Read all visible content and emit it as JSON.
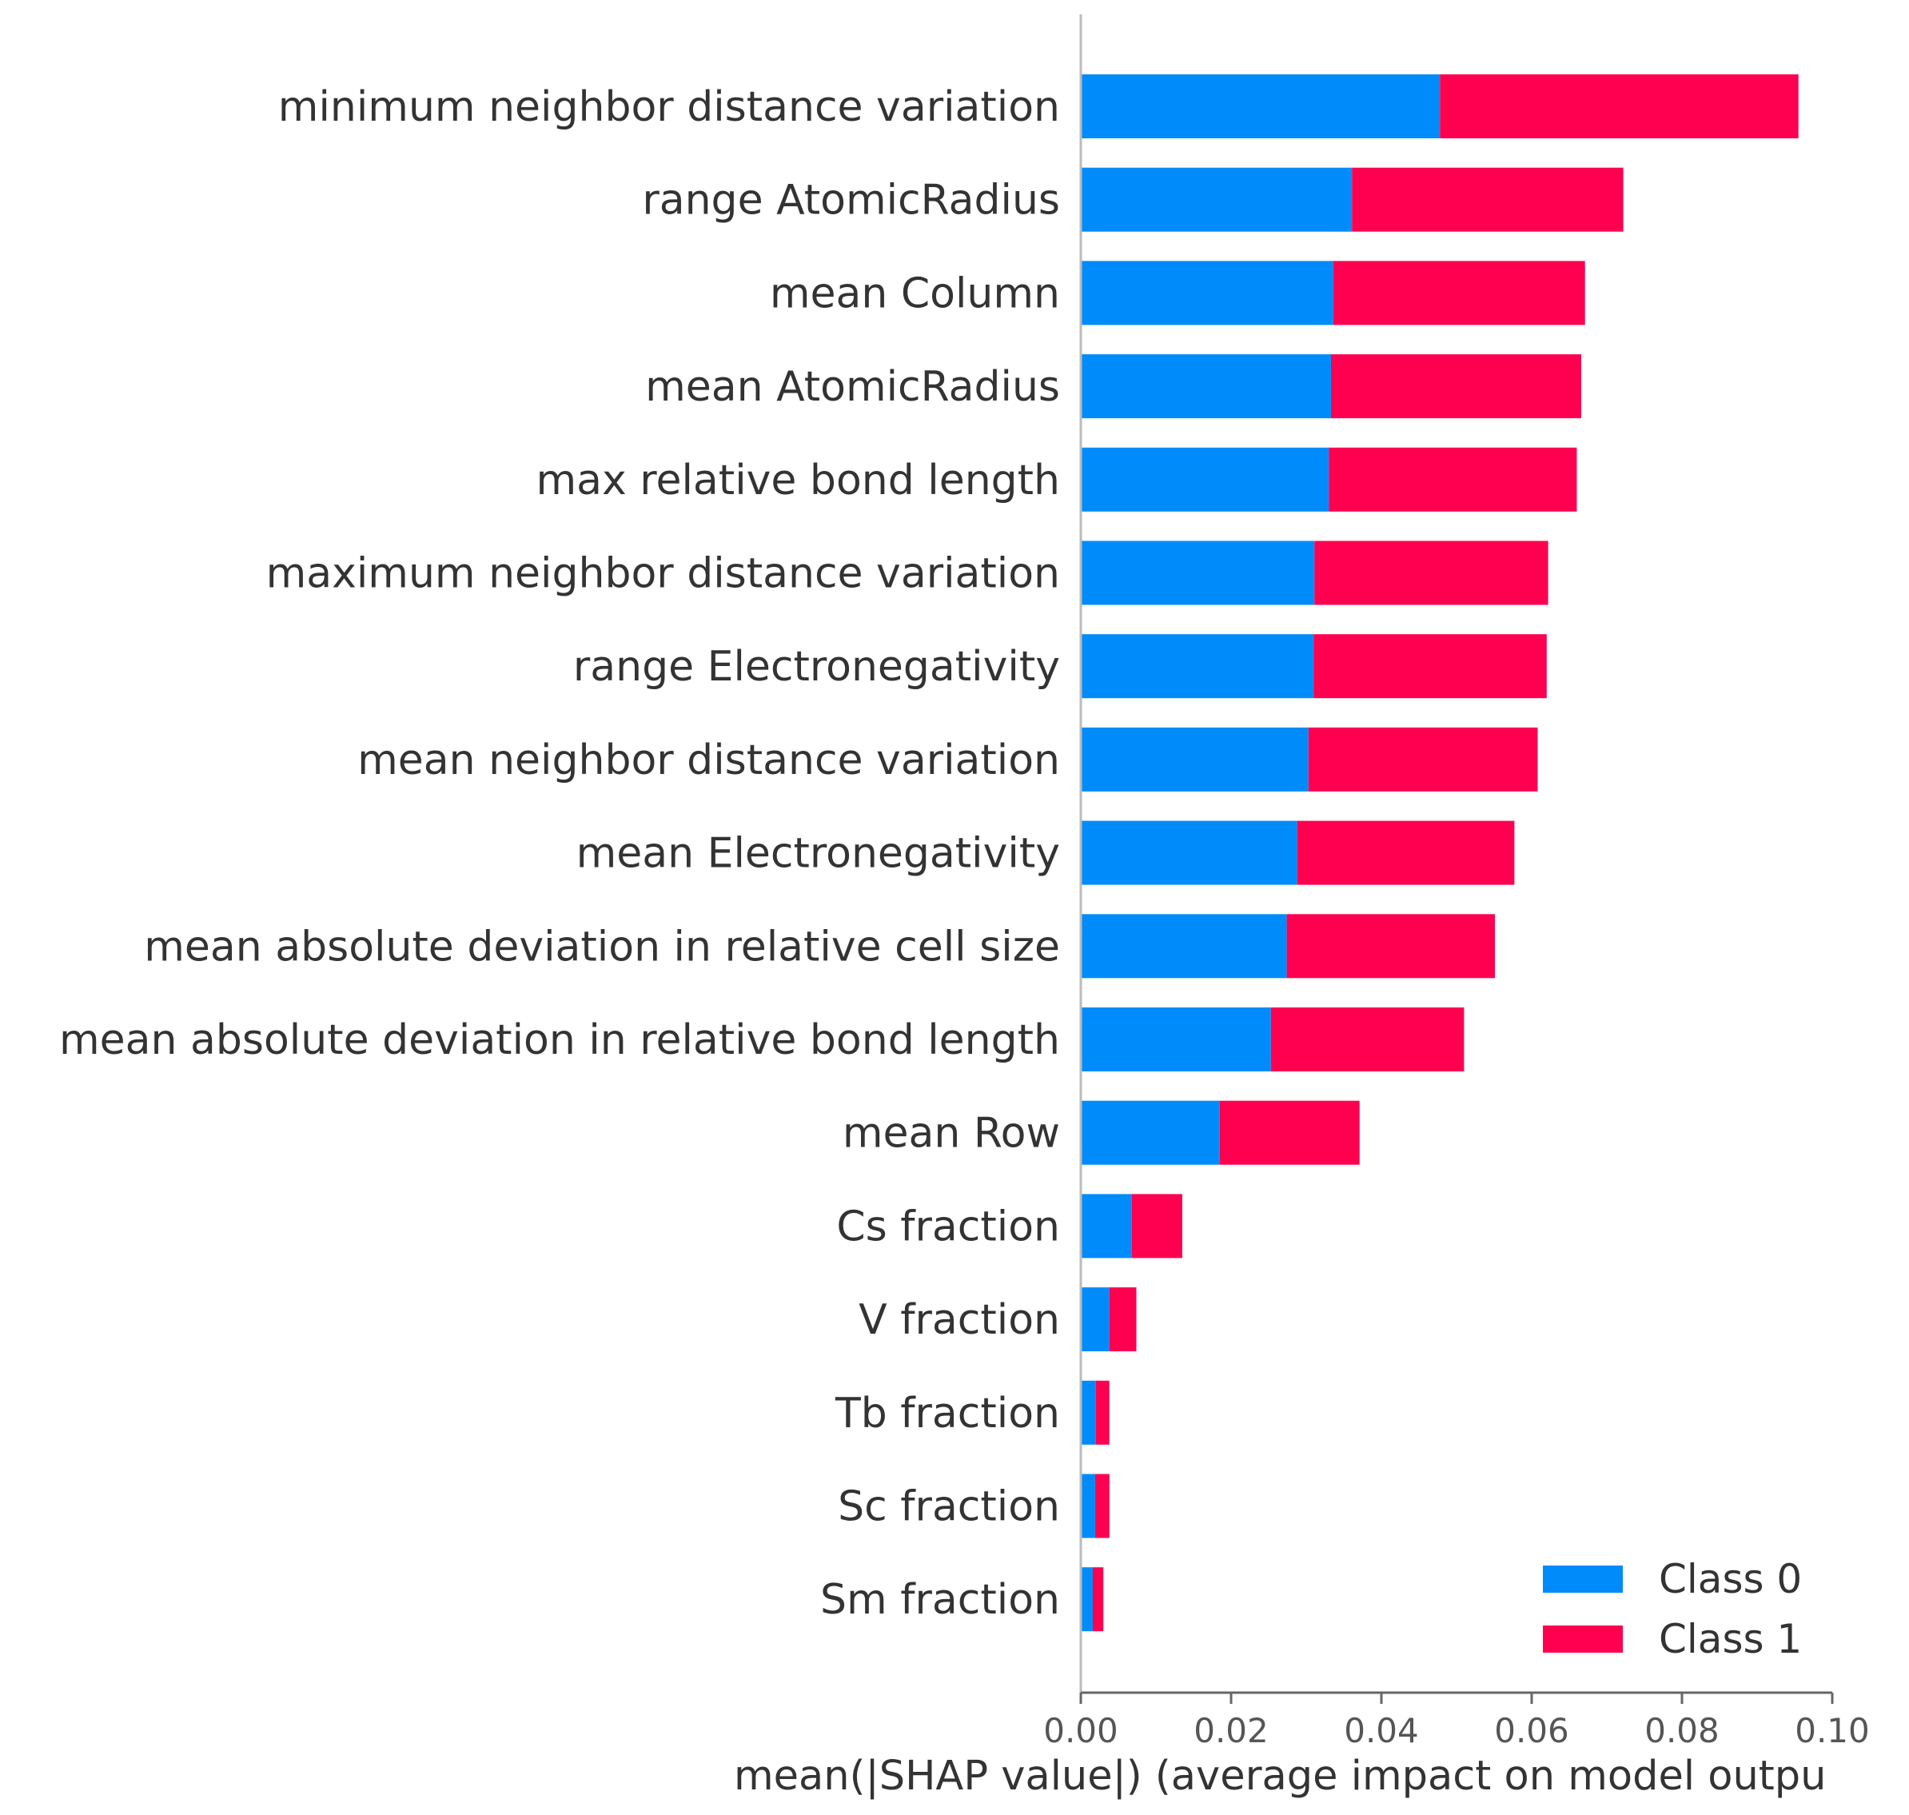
{
  "chart_data": {
    "type": "bar",
    "orientation": "horizontal",
    "stacked": true,
    "categories": [
      "minimum neighbor distance variation",
      "range AtomicRadius",
      "mean Column",
      "mean AtomicRadius",
      "max relative bond length",
      "maximum neighbor distance variation",
      "range Electronegativity",
      "mean neighbor distance variation",
      "mean Electronegativity",
      "mean absolute deviation in relative cell size",
      "mean absolute deviation in relative bond length",
      "mean Row",
      "Cs fraction",
      "V fraction",
      "Tb fraction",
      "Sc fraction",
      "Sm fraction"
    ],
    "series": [
      {
        "name": "Class 0",
        "color": "#008bfb",
        "values": [
          0.0478,
          0.0361,
          0.0336,
          0.0333,
          0.033,
          0.0311,
          0.031,
          0.0303,
          0.0288,
          0.0274,
          0.0253,
          0.0185,
          0.0068,
          0.0038,
          0.002,
          0.0019,
          0.0016
        ]
      },
      {
        "name": "Class 1",
        "color": "#ff0051",
        "values": [
          0.0477,
          0.0361,
          0.0335,
          0.0333,
          0.033,
          0.0311,
          0.031,
          0.0305,
          0.0289,
          0.0277,
          0.0257,
          0.0186,
          0.0067,
          0.0036,
          0.0018,
          0.0019,
          0.0014
        ]
      }
    ],
    "xlabel": "mean(|SHAP value|) (average impact on model outpu",
    "ylabel": "",
    "xlim": [
      0.0,
      0.1
    ],
    "xticks": [
      "0.00",
      "0.02",
      "0.04",
      "0.06",
      "0.08",
      "0.10"
    ],
    "legend": {
      "placement": "bottom-right",
      "entries": [
        "Class 0",
        "Class 1"
      ]
    },
    "grid": false
  }
}
